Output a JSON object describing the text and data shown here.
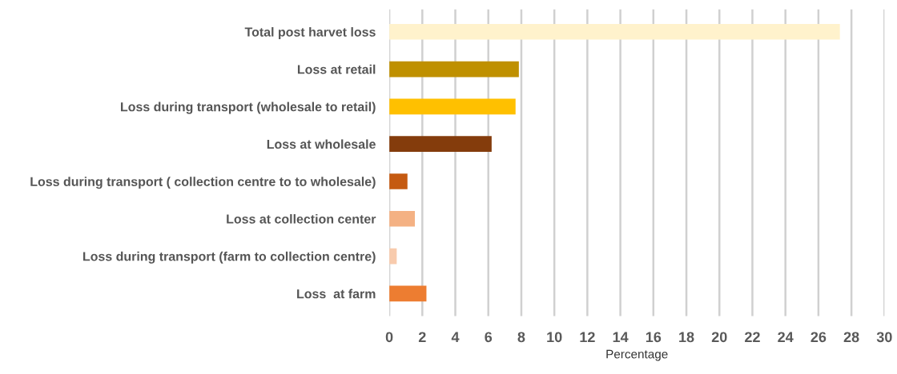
{
  "chart_data": {
    "type": "bar",
    "orientation": "horizontal",
    "xlabel": "Percentage",
    "categories": [
      "Total post harvet loss",
      "Loss at retail",
      "Loss during transport (wholesale to retail)",
      "Loss at wholesale",
      "Loss during transport ( collection centre to to wholesale)",
      "Loss at collection center",
      "Loss during transport (farm to collection centre)",
      "Loss  at farm"
    ],
    "values": [
      27.3,
      7.85,
      7.65,
      6.2,
      1.1,
      1.55,
      0.45,
      2.25
    ],
    "colors": [
      "#fff2cc",
      "#bf9000",
      "#ffc000",
      "#843c0c",
      "#c55a11",
      "#f4b183",
      "#f8cbad",
      "#ed7d31"
    ],
    "xlim": [
      0,
      30
    ],
    "xticks": [
      0,
      2,
      4,
      6,
      8,
      10,
      12,
      14,
      16,
      18,
      20,
      22,
      24,
      26,
      28,
      30
    ],
    "grid": "x"
  }
}
